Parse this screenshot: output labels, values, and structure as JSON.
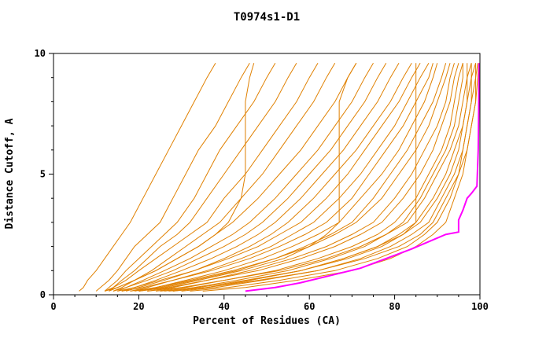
{
  "title": "T0974s1-D1",
  "axes": {
    "xlabel": "Percent of Residues (CA)",
    "ylabel": "Distance Cutoff, A",
    "x_ticks": [
      0,
      20,
      40,
      60,
      80,
      100
    ],
    "y_ticks": [
      0,
      5,
      10
    ],
    "x_minor_step": 5,
    "y_minor_step": 1,
    "xlim": [
      0,
      100
    ],
    "ylim": [
      0,
      10
    ]
  },
  "colors": {
    "model_lines": "#E08000",
    "highlight_line": "#FF00FF",
    "axis": "#000000",
    "background": "#FFFFFF"
  },
  "chart_data": {
    "type": "line",
    "title": "T0974s1-D1",
    "xlabel": "Percent of Residues (CA)",
    "ylabel": "Distance Cutoff, A",
    "xlim": [
      0,
      100
    ],
    "ylim": [
      0,
      10
    ],
    "grid": false,
    "legend": null,
    "description": "GDT-style cumulative curves: percent of CA residues (x) under a distance cutoff in Angstroms (y). Many orange model curves, one magenta highlighted model curve.",
    "y_anchors": [
      0.15,
      0.3,
      0.6,
      1.0,
      1.5,
      2.0,
      2.5,
      3.0,
      4.0,
      5.0,
      6.0,
      7.0,
      8.0,
      9.0,
      9.6
    ],
    "orange_series": [
      [
        6,
        7,
        8,
        10,
        12,
        14,
        16,
        18,
        21,
        24,
        27,
        30,
        33,
        36,
        38
      ],
      [
        10,
        11,
        13,
        15,
        17,
        19,
        22,
        25,
        28,
        31,
        34,
        38,
        41,
        44,
        46
      ],
      [
        12,
        13,
        15,
        17,
        20,
        23,
        26,
        29,
        33,
        36,
        39,
        43,
        47,
        50,
        52
      ],
      [
        13,
        14,
        16,
        19,
        22,
        25,
        29,
        32,
        36,
        40,
        44,
        48,
        52,
        55,
        57
      ],
      [
        12,
        14,
        17,
        20,
        24,
        28,
        32,
        36,
        40,
        45,
        49,
        53,
        57,
        60,
        62
      ],
      [
        14,
        16,
        19,
        23,
        27,
        31,
        35,
        39,
        44,
        49,
        53,
        57,
        61,
        64,
        66
      ],
      [
        13,
        15,
        19,
        24,
        29,
        34,
        38,
        42,
        48,
        53,
        58,
        62,
        66,
        69,
        71
      ],
      [
        15,
        17,
        21,
        26,
        32,
        37,
        42,
        46,
        52,
        57,
        62,
        66,
        70,
        73,
        75
      ],
      [
        14,
        17,
        22,
        28,
        34,
        40,
        45,
        49,
        55,
        60,
        65,
        69,
        73,
        76,
        78
      ],
      [
        16,
        19,
        24,
        30,
        37,
        43,
        48,
        52,
        58,
        63,
        68,
        72,
        76,
        79,
        81
      ],
      [
        17,
        20,
        26,
        33,
        40,
        46,
        51,
        55,
        61,
        66,
        71,
        75,
        79,
        82,
        84
      ],
      [
        15,
        19,
        25,
        33,
        41,
        48,
        53,
        58,
        64,
        69,
        73,
        77,
        81,
        84,
        86
      ],
      [
        18,
        22,
        28,
        36,
        44,
        51,
        56,
        61,
        67,
        72,
        76,
        80,
        83,
        86,
        88
      ],
      [
        16,
        21,
        28,
        37,
        46,
        53,
        59,
        64,
        70,
        74,
        78,
        82,
        85,
        88,
        89
      ],
      [
        19,
        24,
        31,
        40,
        49,
        56,
        62,
        67,
        72,
        77,
        81,
        84,
        87,
        89,
        90
      ],
      [
        20,
        25,
        33,
        43,
        52,
        59,
        65,
        70,
        75,
        79,
        83,
        86,
        89,
        91,
        92
      ],
      [
        18,
        24,
        32,
        42,
        52,
        60,
        66,
        71,
        77,
        81,
        85,
        88,
        90,
        92,
        93
      ],
      [
        22,
        28,
        36,
        46,
        56,
        64,
        70,
        75,
        80,
        84,
        87,
        90,
        92,
        93,
        94
      ],
      [
        20,
        27,
        36,
        48,
        58,
        66,
        72,
        77,
        82,
        86,
        89,
        91,
        93,
        94,
        95
      ],
      [
        24,
        31,
        40,
        52,
        62,
        70,
        76,
        80,
        85,
        88,
        91,
        93,
        94,
        95,
        96
      ],
      [
        26,
        33,
        43,
        55,
        65,
        73,
        78,
        82,
        86,
        89,
        92,
        94,
        95,
        96,
        96
      ],
      [
        22,
        30,
        40,
        53,
        64,
        72,
        78,
        83,
        87,
        90,
        93,
        95,
        96,
        97,
        97
      ],
      [
        28,
        36,
        46,
        58,
        68,
        76,
        81,
        85,
        89,
        92,
        94,
        96,
        97,
        97,
        98
      ],
      [
        25,
        34,
        45,
        58,
        69,
        77,
        82,
        86,
        90,
        93,
        95,
        96,
        97,
        98,
        98
      ],
      [
        30,
        38,
        49,
        62,
        72,
        79,
        84,
        88,
        91,
        94,
        96,
        97,
        98,
        98,
        99
      ],
      [
        27,
        36,
        48,
        62,
        73,
        81,
        86,
        89,
        92,
        95,
        96,
        97,
        98,
        99,
        99
      ],
      [
        32,
        41,
        53,
        66,
        76,
        83,
        87,
        90,
        93,
        95,
        97,
        98,
        99,
        99,
        99.5
      ],
      [
        35,
        45,
        57,
        70,
        79,
        85,
        89,
        92,
        94,
        96,
        97,
        98,
        99,
        99.5,
        99.7
      ],
      [
        28,
        36,
        46,
        58,
        68,
        76,
        82,
        85,
        85,
        85,
        85,
        85,
        85,
        85,
        85
      ],
      [
        20,
        26,
        34,
        44,
        54,
        60,
        64,
        67,
        67,
        67,
        67,
        67,
        67,
        69,
        71
      ],
      [
        12,
        15,
        19,
        24,
        29,
        34,
        38,
        41,
        44,
        45,
        45,
        45,
        45,
        46,
        47
      ]
    ],
    "magenta_series": {
      "name": "highlighted-model",
      "points": [
        [
          45,
          0.15
        ],
        [
          52,
          0.3
        ],
        [
          58,
          0.5
        ],
        [
          65,
          0.8
        ],
        [
          72,
          1.1
        ],
        [
          78,
          1.5
        ],
        [
          84,
          1.9
        ],
        [
          88,
          2.2
        ],
        [
          92,
          2.5
        ],
        [
          95,
          2.6
        ],
        [
          95,
          3.1
        ],
        [
          96,
          3.5
        ],
        [
          97,
          4.0
        ],
        [
          98,
          4.2
        ],
        [
          99.3,
          4.5
        ],
        [
          99.6,
          6.0
        ],
        [
          99.7,
          7.5
        ],
        [
          99.8,
          9.6
        ]
      ]
    }
  }
}
